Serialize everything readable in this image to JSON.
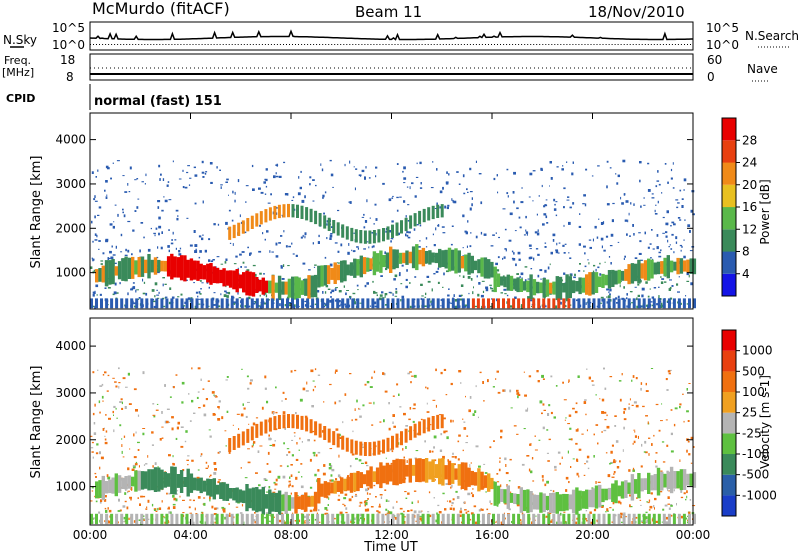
{
  "header": {
    "station": "McMurdo (fitACF)",
    "beam": "Beam 11",
    "date": "18/Nov/2010"
  },
  "noise_panel": {
    "left_label": "N.Sky",
    "right_label": "N.Search",
    "left_ticks": [
      "10^5",
      "10^0"
    ],
    "right_ticks": [
      "10^5",
      "10^0"
    ]
  },
  "freq_panel": {
    "left_label_1": "Freq.",
    "left_label_2": "[MHz]",
    "right_label": "Nave",
    "left_ticks": [
      "18",
      "8"
    ],
    "right_ticks": [
      "60",
      "0"
    ]
  },
  "cpid_panel": {
    "label": "CPID",
    "value": "normal (fast) 151"
  },
  "chart_data": [
    {
      "type": "heatmap",
      "title": "",
      "ylabel": "Slant Range [km]",
      "xlabel": "",
      "yticks": [
        "1000",
        "2000",
        "3000",
        "4000"
      ],
      "ylim": [
        180,
        4600
      ],
      "colorbar_label": "Power [dB]",
      "colorbar_ticks": [
        "4",
        "8",
        "12",
        "16",
        "20",
        "24",
        "28"
      ],
      "colorbar_colors": [
        "#1414e6",
        "#2a5bb0",
        "#3a8a5a",
        "#5ab84a",
        "#e8c020",
        "#f08a18",
        "#e84010",
        "#e80000"
      ],
      "xtick_hours": [
        0,
        4,
        8,
        12,
        16,
        20,
        24
      ]
    },
    {
      "type": "heatmap",
      "title": "",
      "ylabel": "Slant Range [km]",
      "xlabel": "Time UT",
      "xticks": [
        "00:00",
        "04:00",
        "08:00",
        "12:00",
        "16:00",
        "20:00",
        "00:00"
      ],
      "yticks": [
        "1000",
        "2000",
        "3000",
        "4000"
      ],
      "ylim": [
        180,
        4600
      ],
      "colorbar_label": "Velocity [m s-1]",
      "colorbar_ticks": [
        "1000",
        "500",
        "100",
        "25",
        "-25",
        "-100",
        "-500",
        "-1000"
      ],
      "colorbar_colors": [
        "#1a3ec8",
        "#2a5fa8",
        "#3a8a5a",
        "#5ec040",
        "#b4b4b4",
        "#f0a020",
        "#f07010",
        "#e84010",
        "#e80000"
      ],
      "xtick_hours": [
        0,
        4,
        8,
        12,
        16,
        20,
        24
      ]
    }
  ]
}
